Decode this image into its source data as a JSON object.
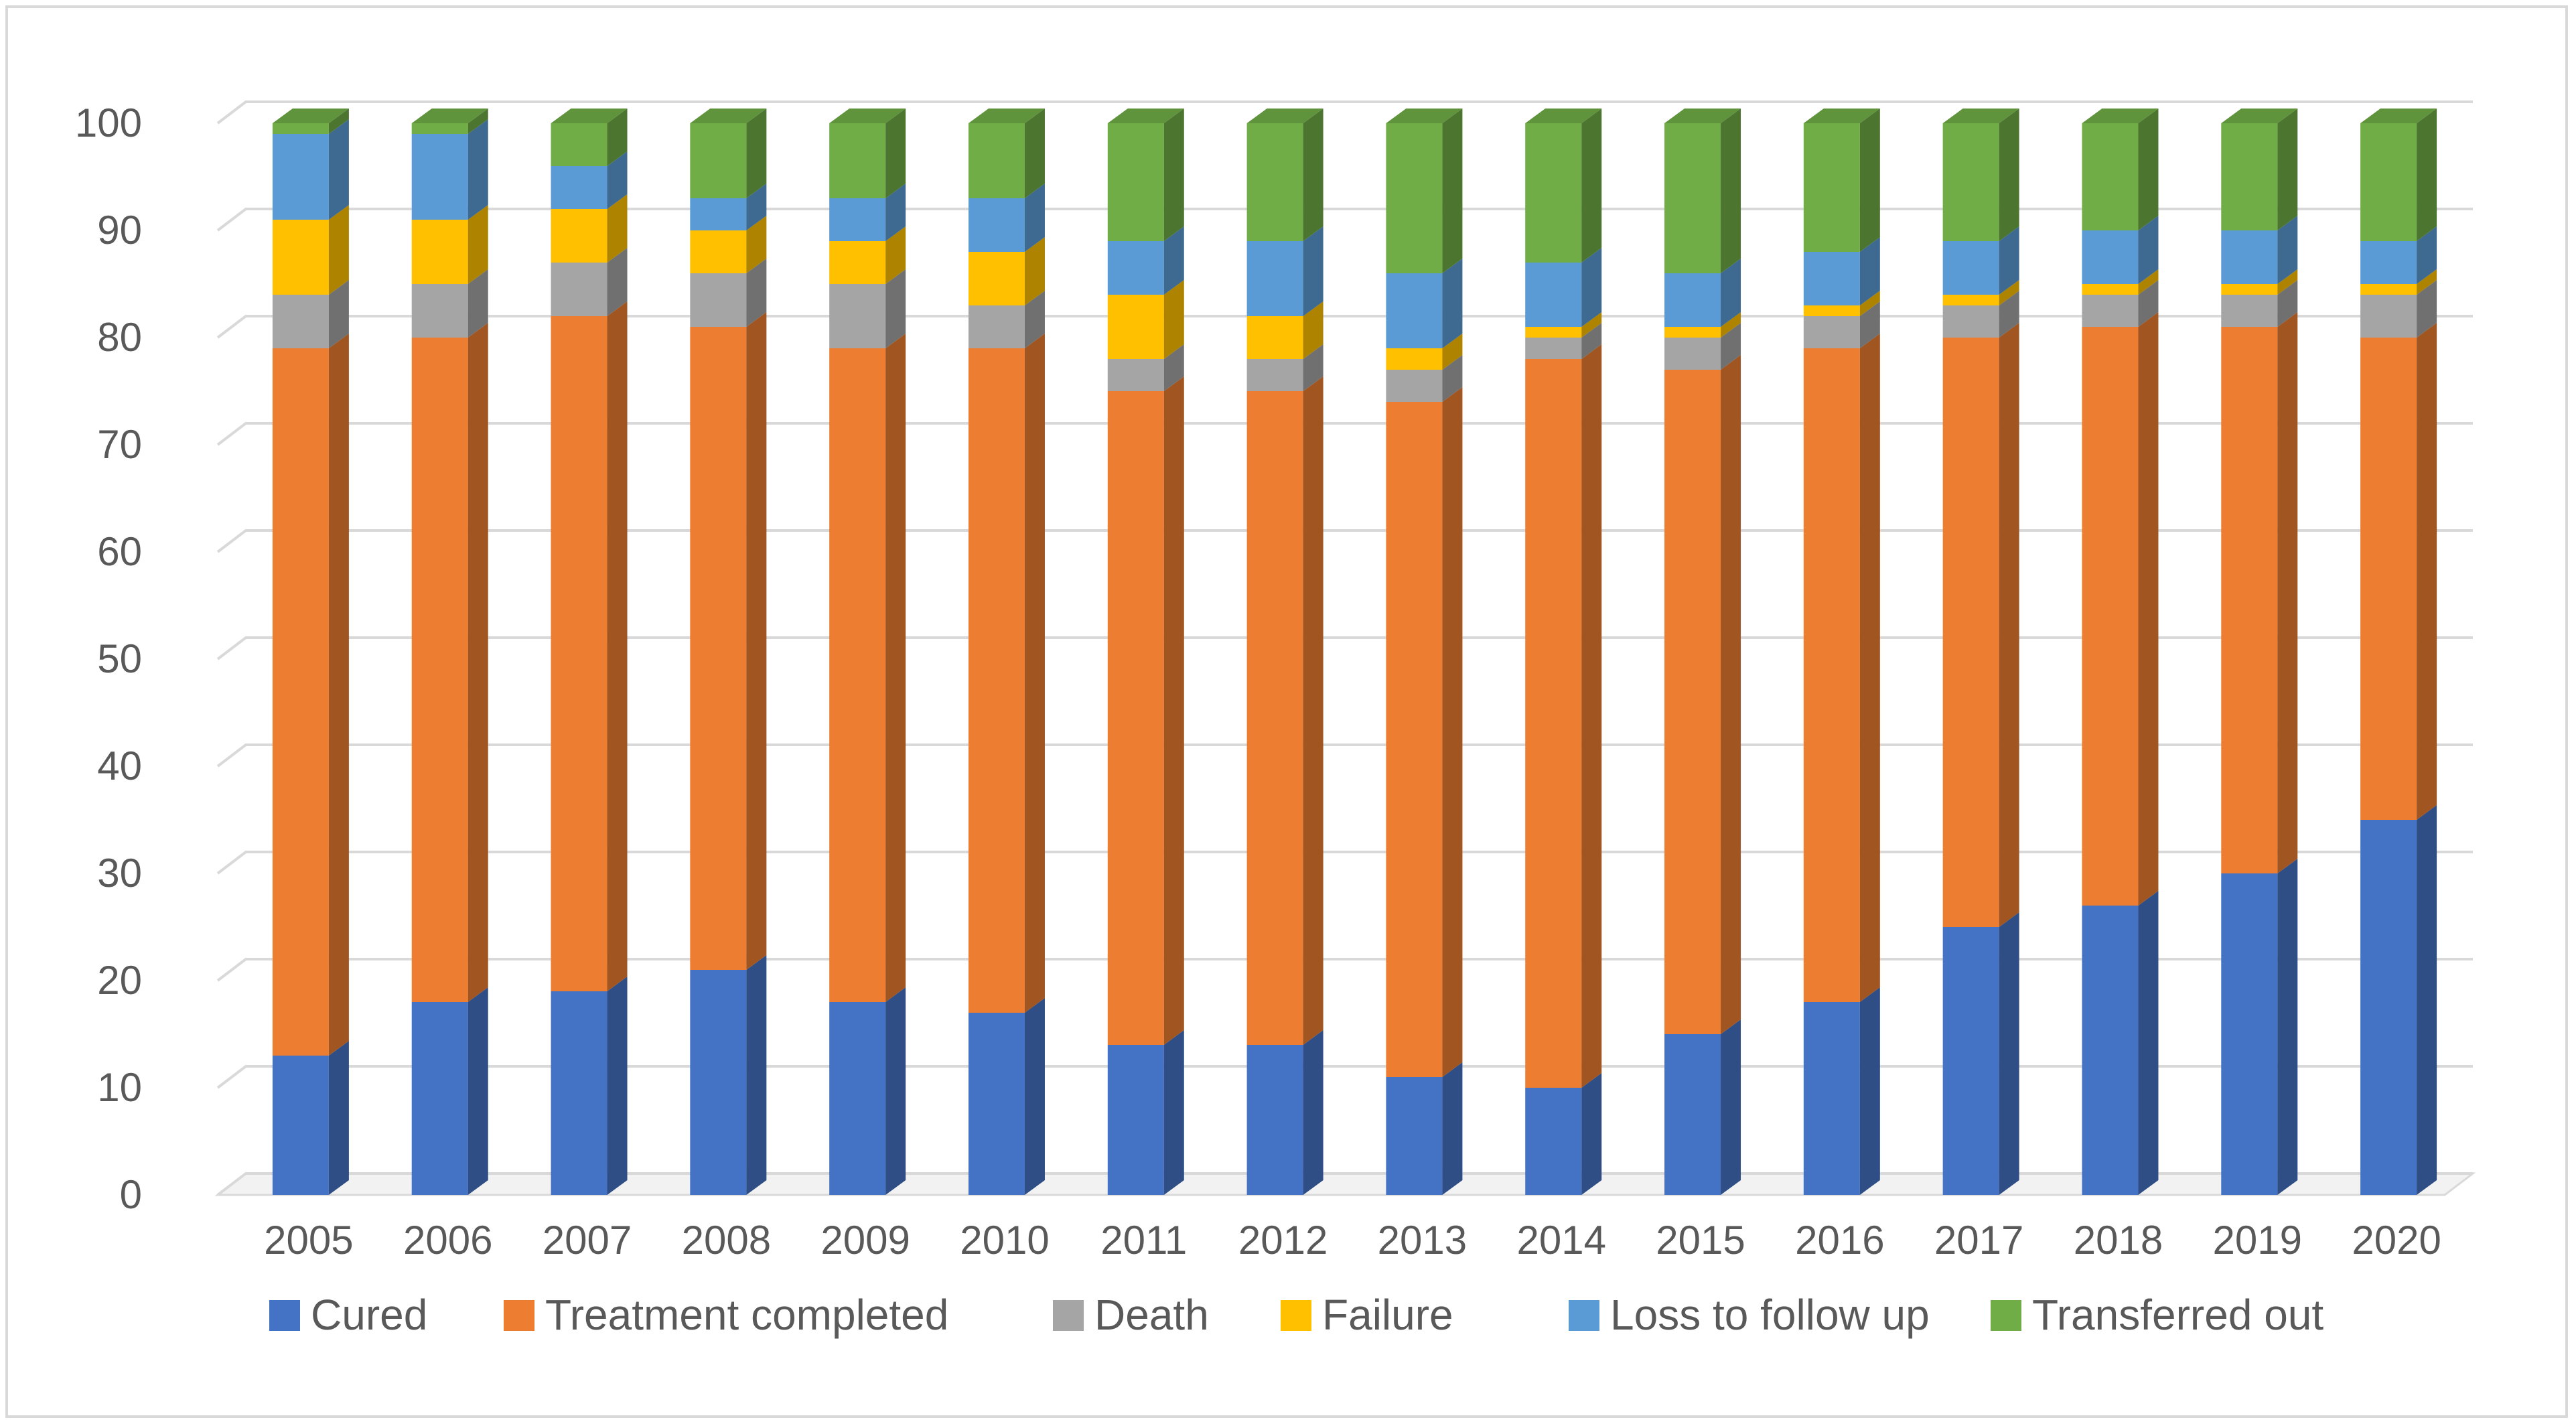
{
  "chart_data": {
    "type": "bar",
    "stacked": true,
    "title": "",
    "xlabel": "",
    "ylabel": "",
    "ylim": [
      0,
      100
    ],
    "yticks": [
      0,
      10,
      20,
      30,
      40,
      50,
      60,
      70,
      80,
      90,
      100
    ],
    "grid": true,
    "legend_position": "bottom",
    "categories": [
      "2005",
      "2006",
      "2007",
      "2008",
      "2009",
      "2010",
      "2011",
      "2012",
      "2013",
      "2014",
      "2015",
      "2016",
      "2017",
      "2018",
      "2019",
      "2020"
    ],
    "series": [
      {
        "name": "Cured",
        "color": "#4472C4",
        "values": [
          13,
          18,
          19,
          21,
          18,
          17,
          14,
          14,
          11,
          10,
          15,
          18,
          25,
          27,
          30,
          35
        ]
      },
      {
        "name": "Treatment completed",
        "color": "#ED7D31",
        "values": [
          66,
          62,
          63,
          60,
          61,
          62,
          61,
          61,
          63,
          68,
          62,
          61,
          55,
          54,
          51,
          45
        ]
      },
      {
        "name": "Death",
        "color": "#A5A5A5",
        "values": [
          5,
          5,
          5,
          5,
          6,
          4,
          3,
          3,
          3,
          2,
          3,
          3,
          3,
          3,
          3,
          4
        ]
      },
      {
        "name": "Failure",
        "color": "#FFC000",
        "values": [
          7,
          6,
          5,
          4,
          4,
          5,
          6,
          4,
          2,
          1,
          1,
          1,
          1,
          1,
          1,
          1
        ]
      },
      {
        "name": "Loss to follow up",
        "color": "#5B9BD5",
        "values": [
          8,
          8,
          4,
          3,
          4,
          5,
          5,
          7,
          7,
          6,
          5,
          5,
          5,
          5,
          5,
          4
        ]
      },
      {
        "name": "Transferred out",
        "color": "#70AD47",
        "values": [
          1,
          1,
          4,
          7,
          7,
          7,
          11,
          11,
          14,
          13,
          14,
          12,
          11,
          10,
          10,
          11
        ]
      }
    ]
  }
}
